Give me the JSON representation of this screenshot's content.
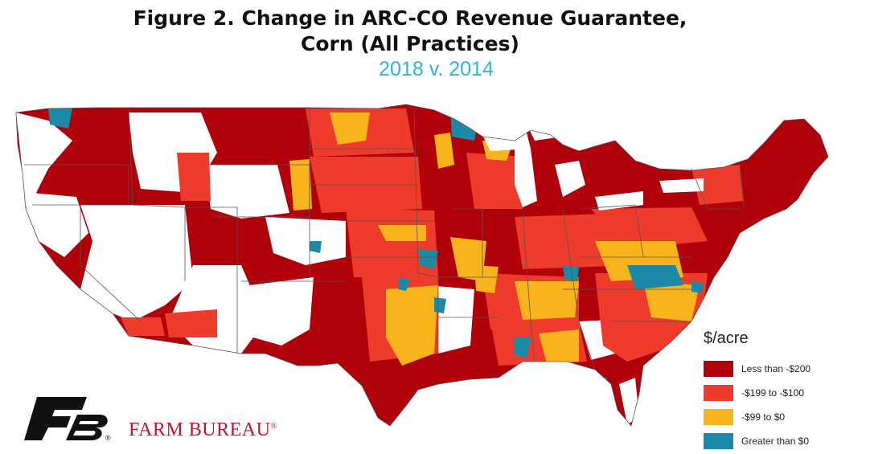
{
  "title_line1": "Figure 2. Change in ARC-CO Revenue Guarantee,",
  "title_line2": "Corn (All Practices)",
  "subtitle": "2018 v. 2014",
  "legend": {
    "title": "$/acre",
    "items": [
      {
        "label": "Less than -$200",
        "color": "#b0000a"
      },
      {
        "label": "-$199 to -$100",
        "color": "#ee3b2b"
      },
      {
        "label": "-$99 to $0",
        "color": "#f9b41b"
      },
      {
        "label": "Greater than $0",
        "color": "#1a8aa6"
      }
    ]
  },
  "brand": {
    "name": "FARM BUREAU",
    "registered": "®"
  }
}
